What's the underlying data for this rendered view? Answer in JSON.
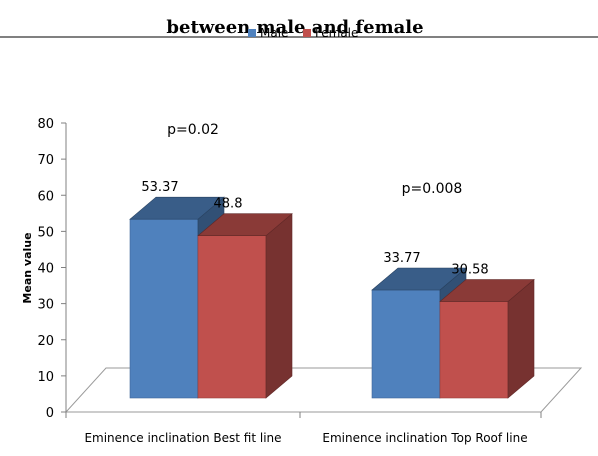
{
  "chart_data": {
    "type": "bar",
    "title": "between male and female",
    "ylabel": "Mean value",
    "xlabel": "",
    "ylim": [
      0,
      80
    ],
    "yticks": [
      0,
      10,
      20,
      30,
      40,
      50,
      60,
      70,
      80
    ],
    "categories": [
      "Eminence inclination Best fit line",
      "Eminence inclination Top Roof line"
    ],
    "series": [
      {
        "name": "Male",
        "values": [
          53.37,
          33.77
        ],
        "color": "#4F81BD"
      },
      {
        "name": "Female",
        "values": [
          48.8,
          30.58
        ],
        "color": "#C0504D"
      }
    ],
    "data_labels": [
      [
        "53.37",
        "48.8"
      ],
      [
        "33.77",
        "30.58"
      ]
    ],
    "annotations": [
      "p=0.02",
      "p=0.008"
    ],
    "legend_position": "top",
    "grid": false,
    "style": "3d-clustered-column"
  }
}
